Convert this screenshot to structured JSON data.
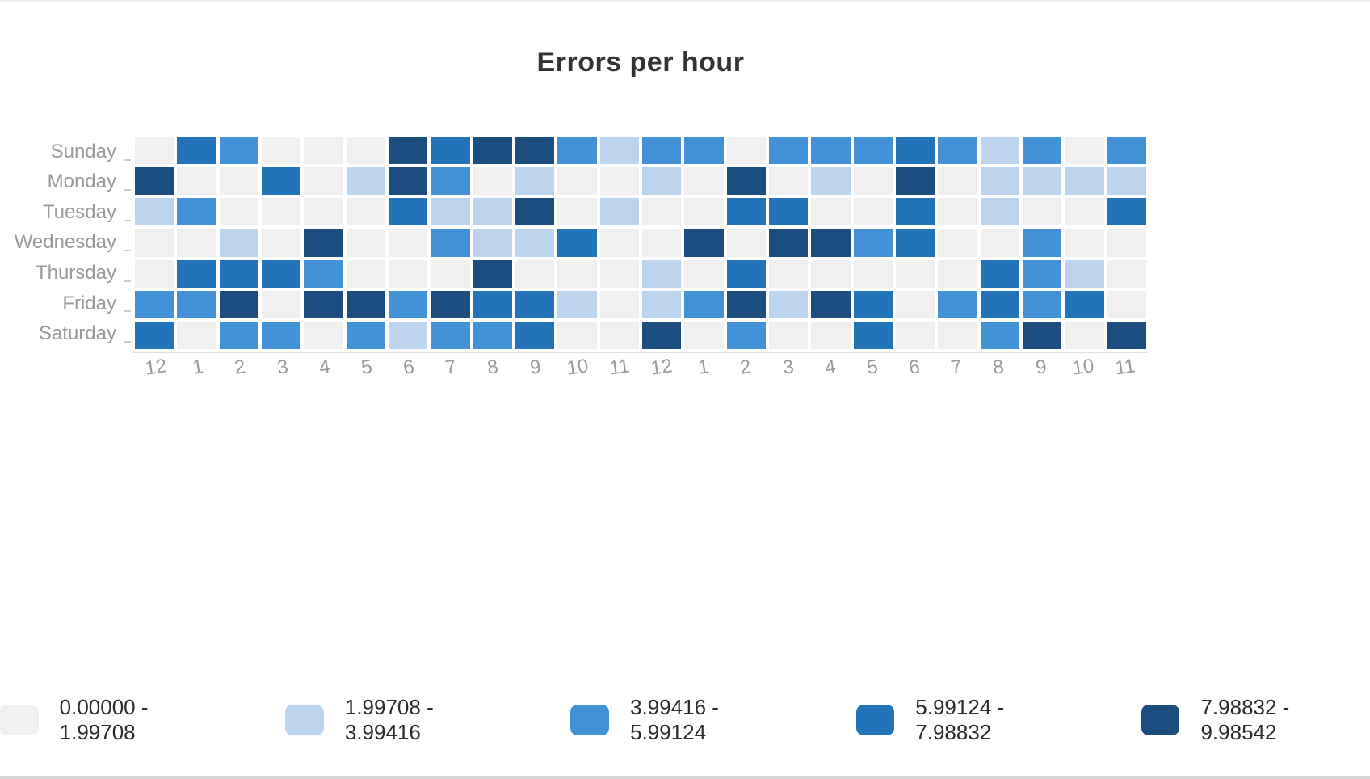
{
  "chart_data": {
    "type": "heatmap",
    "title": "Errors per hour",
    "xlabel": "",
    "ylabel": "",
    "rows": [
      "Sunday",
      "Monday",
      "Tuesday",
      "Wednesday",
      "Thursday",
      "Friday",
      "Saturday"
    ],
    "columns": [
      "12",
      "1",
      "2",
      "3",
      "4",
      "5",
      "6",
      "7",
      "8",
      "9",
      "10",
      "11",
      "12",
      "1",
      "2",
      "3",
      "4",
      "5",
      "6",
      "7",
      "8",
      "9",
      "10",
      "11"
    ],
    "palette": [
      "#f0f0f0",
      "#bcd4ee",
      "#4392d8",
      "#2273b8",
      "#1c4d7f"
    ],
    "level_matrix_note": "levels 0-4 index into palette and legend bins",
    "levels": [
      [
        0,
        3,
        2,
        0,
        0,
        0,
        4,
        3,
        4,
        4,
        2,
        1,
        2,
        2,
        0,
        2,
        2,
        2,
        3,
        2,
        1,
        2,
        0,
        2
      ],
      [
        4,
        0,
        0,
        3,
        0,
        1,
        4,
        2,
        0,
        1,
        0,
        0,
        1,
        0,
        4,
        0,
        1,
        0,
        4,
        0,
        1,
        1,
        1,
        1
      ],
      [
        1,
        2,
        0,
        0,
        0,
        0,
        3,
        1,
        1,
        4,
        0,
        1,
        0,
        0,
        3,
        3,
        0,
        0,
        3,
        0,
        1,
        0,
        0,
        3
      ],
      [
        0,
        0,
        1,
        0,
        4,
        0,
        0,
        2,
        1,
        1,
        3,
        0,
        0,
        4,
        0,
        4,
        4,
        2,
        3,
        0,
        0,
        2,
        0,
        0
      ],
      [
        0,
        3,
        3,
        3,
        2,
        0,
        0,
        0,
        4,
        0,
        0,
        0,
        1,
        0,
        3,
        0,
        0,
        0,
        0,
        0,
        3,
        2,
        1,
        0
      ],
      [
        2,
        2,
        4,
        0,
        4,
        4,
        2,
        4,
        3,
        3,
        1,
        0,
        1,
        2,
        4,
        1,
        4,
        3,
        0,
        2,
        3,
        2,
        3,
        0
      ],
      [
        3,
        0,
        2,
        2,
        0,
        2,
        1,
        2,
        2,
        3,
        0,
        0,
        4,
        0,
        2,
        0,
        0,
        3,
        0,
        0,
        2,
        4,
        0,
        4
      ]
    ],
    "legend": {
      "position": "bottom-center",
      "entries": [
        {
          "label": "0.00000 - 1.99708",
          "color": "#f0f0f0"
        },
        {
          "label": "1.99708 - 3.99416",
          "color": "#bcd4ee"
        },
        {
          "label": "3.99416 - 5.99124",
          "color": "#4392d8"
        },
        {
          "label": "5.99124 - 7.98832",
          "color": "#2273b8"
        },
        {
          "label": "7.98832 - 9.98542",
          "color": "#1c4d7f"
        }
      ]
    },
    "axis_style": {
      "label_color": "#9a9a9a",
      "axis_line_color": "#e0e0e0",
      "grid": false
    },
    "title_color": "#333333"
  }
}
